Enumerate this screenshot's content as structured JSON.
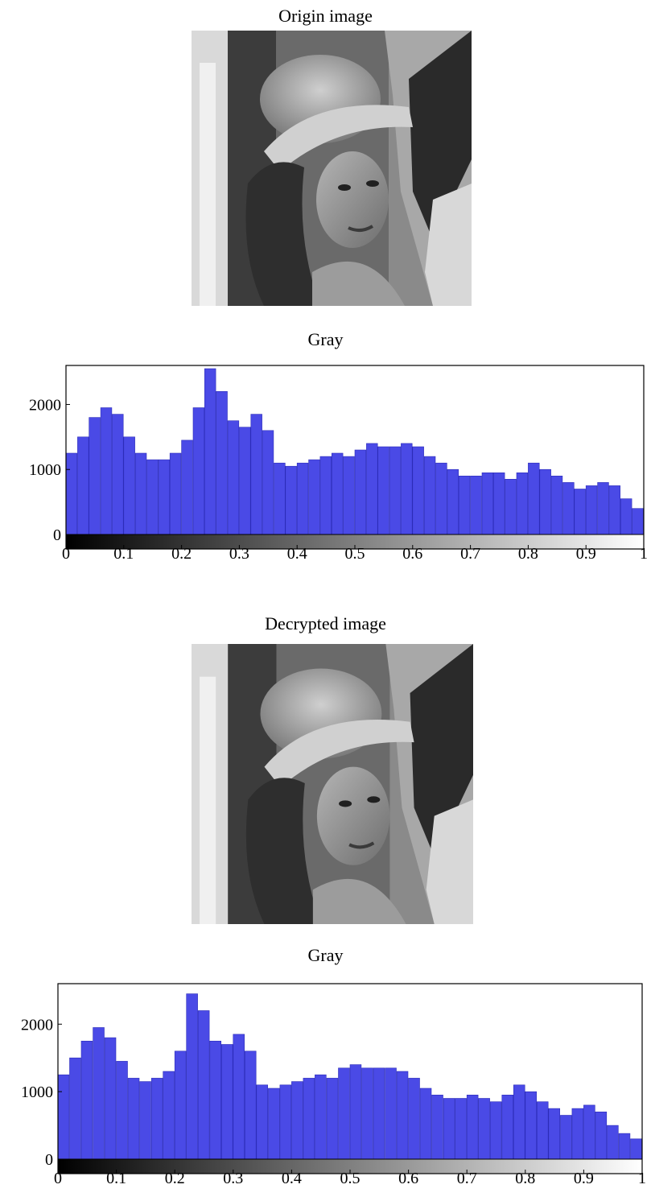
{
  "panels": [
    {
      "image_title": "Origin image",
      "image_alt": "Lena portrait, original grayscale"
    },
    {
      "image_title": "Decrypted image",
      "image_alt": "Lena portrait, decrypted grayscale"
    }
  ],
  "colors": {
    "bar": "#4a4ae6",
    "bar_edge": "#2c2cb8",
    "axis": "#000000"
  },
  "chart_data": [
    {
      "type": "bar",
      "title": "Gray",
      "xlabel": "",
      "ylabel": "",
      "xlim": [
        0,
        1
      ],
      "ylim": [
        0,
        2600
      ],
      "x_ticks": [
        "0",
        "0.1",
        "0.2",
        "0.3",
        "0.4",
        "0.5",
        "0.6",
        "0.7",
        "0.8",
        "0.9",
        "1"
      ],
      "y_ticks": [
        "0",
        "1000",
        "2000"
      ],
      "colorbar": "grayscale 0 to 1",
      "x": [
        0.0,
        0.02,
        0.04,
        0.06,
        0.08,
        0.1,
        0.12,
        0.14,
        0.16,
        0.18,
        0.2,
        0.22,
        0.24,
        0.26,
        0.28,
        0.3,
        0.32,
        0.34,
        0.36,
        0.38,
        0.4,
        0.42,
        0.44,
        0.46,
        0.48,
        0.5,
        0.52,
        0.54,
        0.56,
        0.58,
        0.6,
        0.62,
        0.64,
        0.66,
        0.68,
        0.7,
        0.72,
        0.74,
        0.76,
        0.78,
        0.8,
        0.82,
        0.84,
        0.86,
        0.88,
        0.9,
        0.92,
        0.94,
        0.96,
        0.98
      ],
      "values": [
        1250,
        1500,
        1800,
        1950,
        1850,
        1500,
        1250,
        1150,
        1150,
        1250,
        1450,
        1950,
        2550,
        2200,
        1750,
        1650,
        1850,
        1600,
        1100,
        1050,
        1100,
        1150,
        1200,
        1250,
        1200,
        1300,
        1400,
        1350,
        1350,
        1400,
        1350,
        1200,
        1100,
        1000,
        900,
        900,
        950,
        950,
        850,
        950,
        1100,
        1000,
        900,
        800,
        700,
        750,
        800,
        750,
        550,
        400
      ]
    },
    {
      "type": "bar",
      "title": "Gray",
      "xlabel": "",
      "ylabel": "",
      "xlim": [
        0,
        1
      ],
      "ylim": [
        0,
        2600
      ],
      "x_ticks": [
        "0",
        "0.1",
        "0.2",
        "0.3",
        "0.4",
        "0.5",
        "0.6",
        "0.7",
        "0.8",
        "0.9",
        "1"
      ],
      "y_ticks": [
        "0",
        "1000",
        "2000"
      ],
      "colorbar": "grayscale 0 to 1",
      "x": [
        0.0,
        0.02,
        0.04,
        0.06,
        0.08,
        0.1,
        0.12,
        0.14,
        0.16,
        0.18,
        0.2,
        0.22,
        0.24,
        0.26,
        0.28,
        0.3,
        0.32,
        0.34,
        0.36,
        0.38,
        0.4,
        0.42,
        0.44,
        0.46,
        0.48,
        0.5,
        0.52,
        0.54,
        0.56,
        0.58,
        0.6,
        0.62,
        0.64,
        0.66,
        0.68,
        0.7,
        0.72,
        0.74,
        0.76,
        0.78,
        0.8,
        0.82,
        0.84,
        0.86,
        0.88,
        0.9,
        0.92,
        0.94,
        0.96,
        0.98
      ],
      "values": [
        1250,
        1500,
        1750,
        1950,
        1800,
        1450,
        1200,
        1150,
        1200,
        1300,
        1600,
        2450,
        2200,
        1750,
        1700,
        1850,
        1600,
        1100,
        1050,
        1100,
        1150,
        1200,
        1250,
        1200,
        1350,
        1400,
        1350,
        1350,
        1350,
        1300,
        1200,
        1050,
        950,
        900,
        900,
        950,
        900,
        850,
        950,
        1100,
        1000,
        850,
        750,
        650,
        750,
        800,
        700,
        500,
        380,
        300
      ]
    }
  ]
}
